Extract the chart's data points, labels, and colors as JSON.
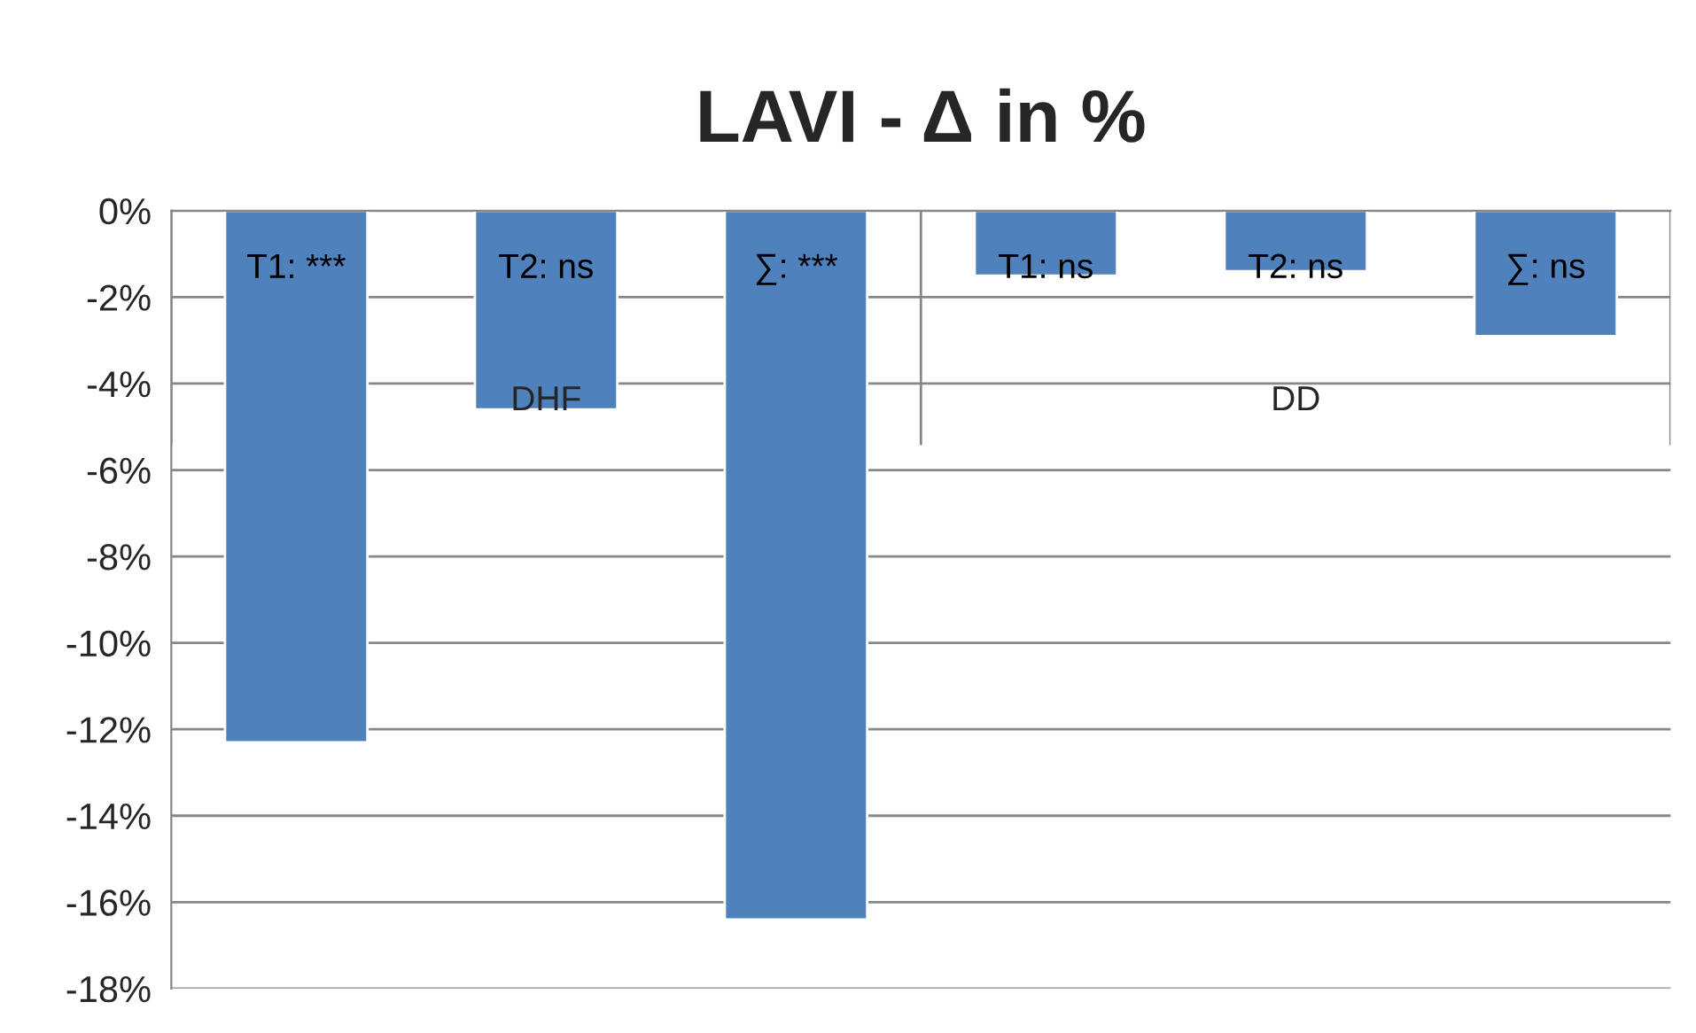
{
  "chart_data": {
    "type": "bar",
    "title": "LAVI - Δ in %",
    "categories": [
      "T1: ***",
      "T2: ns",
      "∑: ***",
      "T1: ns",
      "T2: ns",
      "∑: ns"
    ],
    "values": [
      -12.3,
      -4.6,
      -16.4,
      -1.5,
      -1.4,
      -2.9
    ],
    "color": "#4f81bd",
    "ylim": [
      -18,
      0
    ],
    "yticks": [
      {
        "value": 0,
        "label": "0%"
      },
      {
        "value": -2,
        "label": "-2%"
      },
      {
        "value": -4,
        "label": "-4%"
      },
      {
        "value": -6,
        "label": "-6%"
      },
      {
        "value": -8,
        "label": "-8%"
      },
      {
        "value": -10,
        "label": "-10%"
      },
      {
        "value": -12,
        "label": "-12%"
      },
      {
        "value": -14,
        "label": "-14%"
      },
      {
        "value": -16,
        "label": "-16%"
      },
      {
        "value": -18,
        "label": "-18%"
      }
    ],
    "grid": "y",
    "annotations": [
      "DHF",
      "DD"
    ]
  }
}
